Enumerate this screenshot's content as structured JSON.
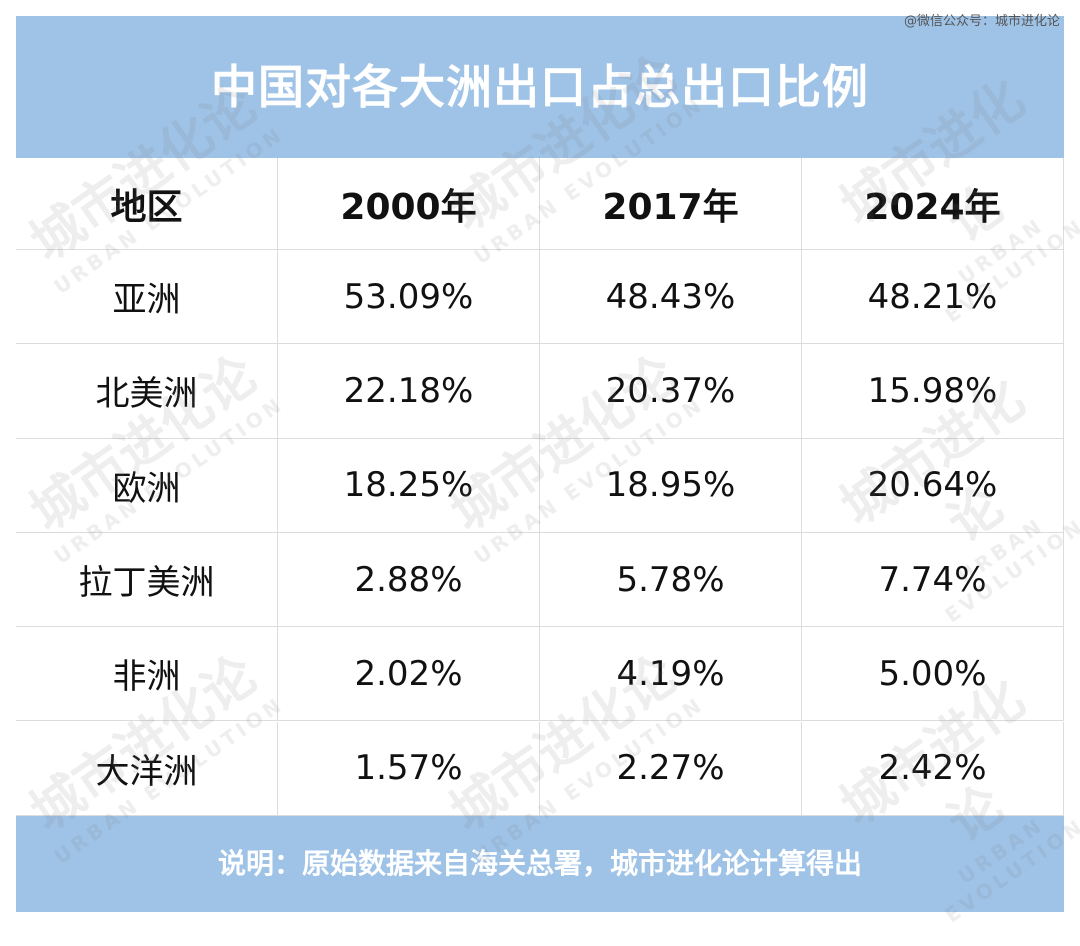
{
  "source_note": "@微信公众号：城市进化论",
  "header": {
    "title": "中国对各大洲出口占总出口比例"
  },
  "table": {
    "columns": [
      "地区",
      "2000年",
      "2017年",
      "2024年"
    ],
    "rows": [
      [
        "亚洲",
        "53.09%",
        "48.43%",
        "48.21%"
      ],
      [
        "北美洲",
        "22.18%",
        "20.37%",
        "15.98%"
      ],
      [
        "欧洲",
        "18.25%",
        "18.95%",
        "20.64%"
      ],
      [
        "拉丁美洲",
        "2.88%",
        "5.78%",
        "7.74%"
      ],
      [
        "非洲",
        "2.02%",
        "4.19%",
        "5.00%"
      ],
      [
        "大洋洲",
        "1.57%",
        "2.27%",
        "2.42%"
      ]
    ]
  },
  "footer": {
    "note": "说明：原始数据来自海关总署，城市进化论计算得出"
  },
  "watermark": {
    "name": "城市进化论",
    "english": "URBAN EVOLUTION"
  }
}
